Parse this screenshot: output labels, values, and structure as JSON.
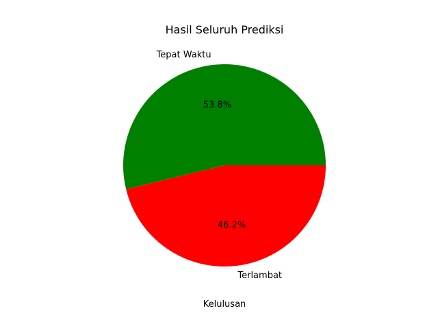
{
  "chart_data": {
    "type": "pie",
    "title": "Hasil Seluruh Prediksi",
    "xlabel": "Kelulusan",
    "ylabel": "",
    "slices": [
      {
        "label": "Tepat Waktu",
        "value": 53.8,
        "pct_label": "53.8%",
        "color": "#008000"
      },
      {
        "label": "Terlambat",
        "value": 46.2,
        "pct_label": "46.2%",
        "color": "#ff0000"
      }
    ],
    "start_angle_deg": 0,
    "direction": "counterclockwise"
  }
}
